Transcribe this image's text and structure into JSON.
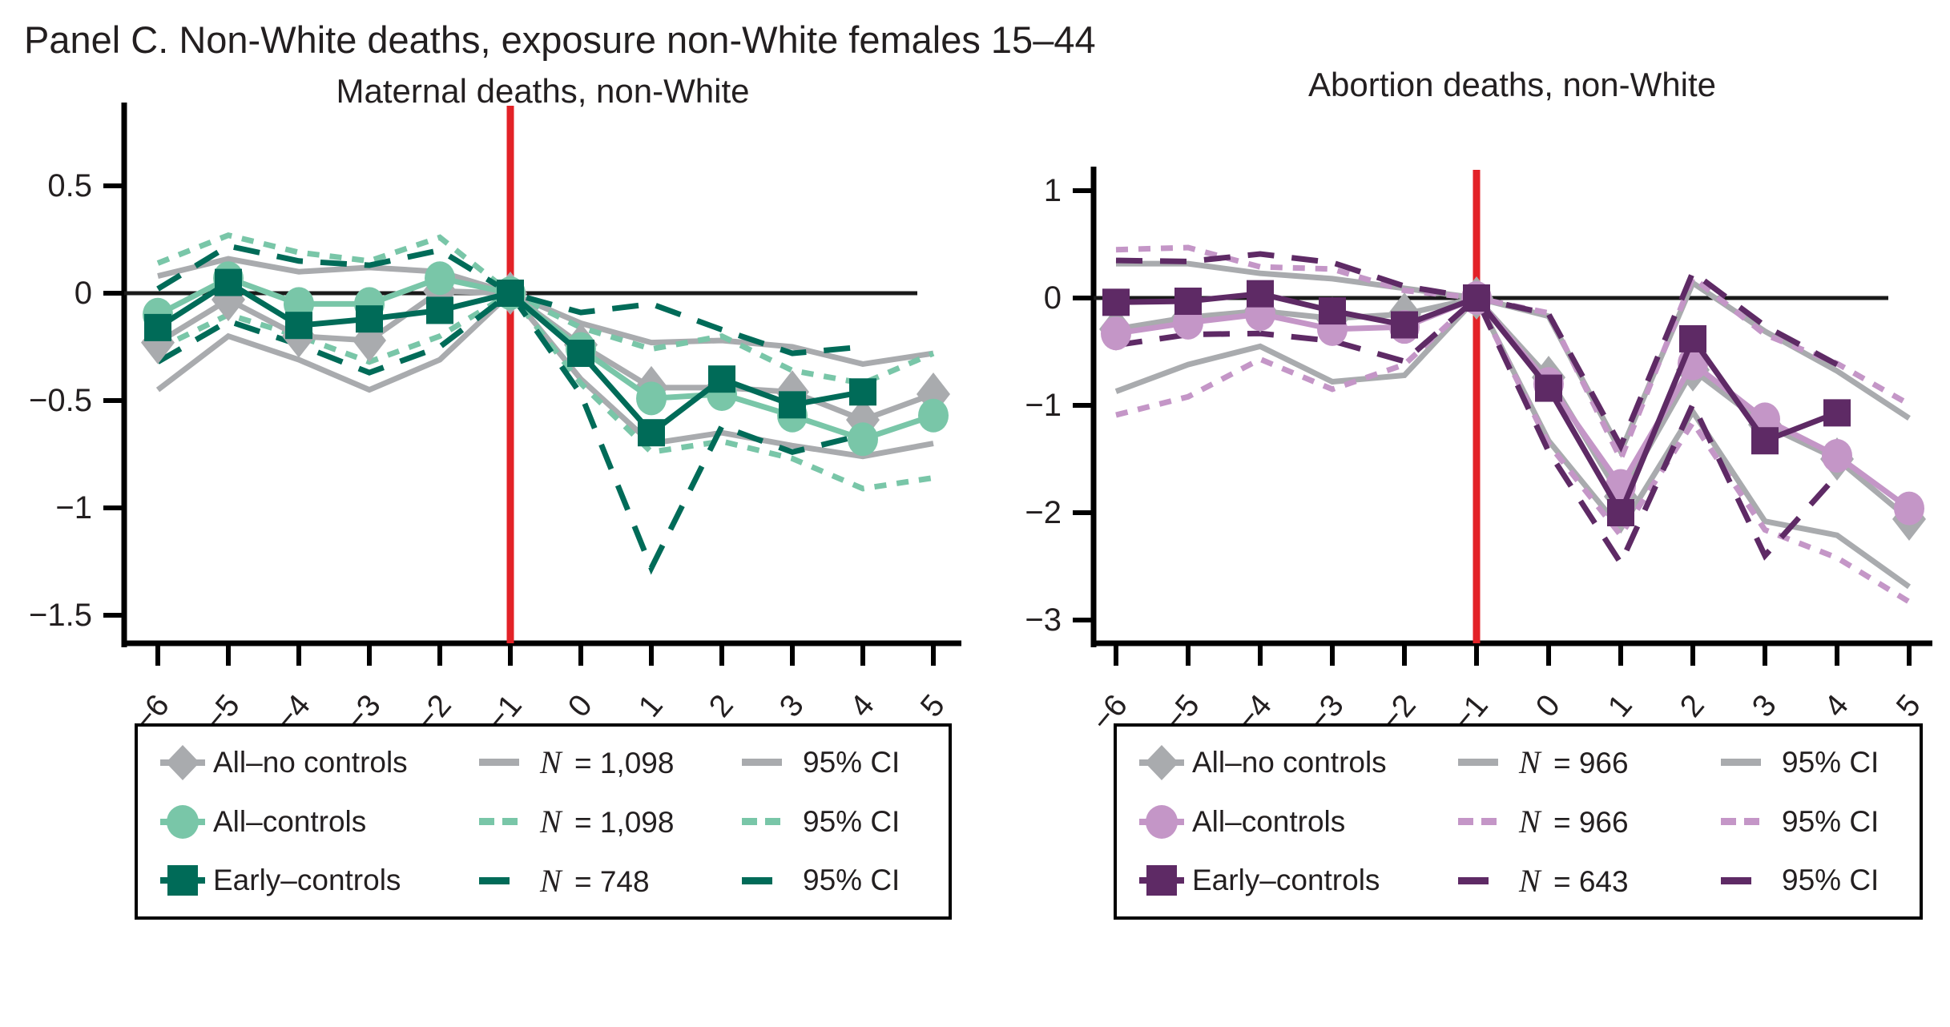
{
  "panel_title": "Panel C. Non-White deaths, exposure non-White females 15–44",
  "colors": {
    "gray": "#a9abae",
    "teal_light": "#79c6a8",
    "teal_dark": "#006b58",
    "purple_light": "#c496c7",
    "purple_dark": "#5e2a65",
    "red_line": "#e32227",
    "axis": "#000000",
    "text": "#231f20"
  },
  "chart_data": [
    {
      "type": "line",
      "title": "Maternal deaths, non-White",
      "xlabel": "",
      "ylabel": "",
      "x": [
        -6,
        -5,
        -4,
        -3,
        -2,
        -1,
        0,
        1,
        2,
        3,
        4,
        5
      ],
      "x_tick_labels": [
        "−6",
        "−5",
        "−4",
        "−3",
        "−2",
        "−1",
        "0",
        "1",
        "2",
        "3",
        "4",
        "5"
      ],
      "y_ticks": [
        {
          "v": 0.5,
          "label": "0.5"
        },
        {
          "v": 0,
          "label": "0"
        },
        {
          "v": -0.5,
          "label": "−0.5"
        },
        {
          "v": -1,
          "label": "−1"
        },
        {
          "v": -1.5,
          "label": "−1.5"
        }
      ],
      "ylim": [
        -1.63,
        0.89
      ],
      "grid": false,
      "zero_line": true,
      "vline_x": -1,
      "series": [
        {
          "name": "95% CI upper, all no controls",
          "role": "ci",
          "color_key": "gray",
          "dash": "solid",
          "values": [
            0.08,
            0.16,
            0.1,
            0.12,
            0.1,
            0,
            -0.14,
            -0.23,
            -0.22,
            -0.25,
            -0.33,
            -0.28
          ]
        },
        {
          "name": "95% CI lower, all no controls",
          "role": "ci",
          "color_key": "gray",
          "dash": "solid",
          "values": [
            -0.45,
            -0.2,
            -0.31,
            -0.45,
            -0.31,
            0,
            -0.4,
            -0.7,
            -0.65,
            -0.71,
            -0.76,
            -0.7
          ]
        },
        {
          "name": "95% CI upper, all controls",
          "role": "ci",
          "color_key": "teal_light",
          "dash": "short",
          "values": [
            0.14,
            0.27,
            0.19,
            0.15,
            0.26,
            0,
            -0.16,
            -0.26,
            -0.2,
            -0.36,
            -0.42,
            -0.28
          ]
        },
        {
          "name": "95% CI lower, all controls",
          "role": "ci",
          "color_key": "teal_light",
          "dash": "short",
          "values": [
            -0.26,
            -0.1,
            -0.2,
            -0.32,
            -0.2,
            0,
            -0.42,
            -0.74,
            -0.69,
            -0.77,
            -0.91,
            -0.86
          ]
        },
        {
          "name": "95% CI upper, early controls",
          "role": "ci",
          "color_key": "teal_dark",
          "dash": "long",
          "values": [
            0.02,
            0.22,
            0.15,
            0.13,
            0.2,
            0,
            -0.09,
            -0.05,
            -0.17,
            -0.28,
            -0.25,
            null
          ]
        },
        {
          "name": "95% CI lower, early controls",
          "role": "ci",
          "color_key": "teal_dark",
          "dash": "long",
          "values": [
            -0.32,
            -0.13,
            -0.24,
            -0.37,
            -0.25,
            0,
            -0.47,
            -1.28,
            -0.62,
            -0.74,
            -0.66,
            null
          ]
        },
        {
          "name": "All–no controls",
          "role": "main",
          "marker": "diamond",
          "color_key": "gray",
          "dash": "solid",
          "values": [
            -0.23,
            -0.03,
            -0.2,
            -0.22,
            0.01,
            0,
            -0.24,
            -0.44,
            -0.44,
            -0.46,
            -0.59,
            -0.47
          ]
        },
        {
          "name": "All–controls",
          "role": "main",
          "marker": "circle",
          "color_key": "teal_light",
          "dash": "solid",
          "values": [
            -0.1,
            0.07,
            -0.05,
            -0.05,
            0.07,
            0,
            -0.26,
            -0.49,
            -0.47,
            -0.57,
            -0.68,
            -0.57
          ]
        },
        {
          "name": "Early–controls",
          "role": "main",
          "marker": "square",
          "color_key": "teal_dark",
          "dash": "solid",
          "values": [
            -0.16,
            0.05,
            -0.15,
            -0.12,
            -0.08,
            0,
            -0.28,
            -0.65,
            -0.4,
            -0.52,
            -0.46,
            null
          ]
        }
      ],
      "legend": [
        {
          "marker": "diamond",
          "color_key": "gray",
          "dash": "solid",
          "label": "All–no controls",
          "n_var": "N",
          "n_rest": "= 1,098",
          "ci_label": "95% CI"
        },
        {
          "marker": "circle",
          "color_key": "teal_light",
          "dash": "short",
          "label": "All–controls",
          "n_var": "N",
          "n_rest": "= 1,098",
          "ci_label": "95% CI"
        },
        {
          "marker": "square",
          "color_key": "teal_dark",
          "dash": "long",
          "label": "Early–controls",
          "n_var": "N",
          "n_rest": "= 748",
          "ci_label": "95% CI"
        }
      ]
    },
    {
      "type": "line",
      "title": "Abortion deaths, non-White",
      "xlabel": "",
      "ylabel": "",
      "x": [
        -6,
        -5,
        -4,
        -3,
        -2,
        -1,
        0,
        1,
        2,
        3,
        4,
        5
      ],
      "x_tick_labels": [
        "−6",
        "−5",
        "−4",
        "−3",
        "−2",
        "−1",
        "0",
        "1",
        "2",
        "3",
        "4",
        "5"
      ],
      "y_ticks": [
        {
          "v": 1,
          "label": "1"
        },
        {
          "v": 0,
          "label": "0"
        },
        {
          "v": -1,
          "label": "−1"
        },
        {
          "v": -2,
          "label": "−2"
        },
        {
          "v": -3,
          "label": "−3"
        }
      ],
      "ylim": [
        -3.23,
        1.22
      ],
      "grid": false,
      "zero_line": true,
      "vline_x": -1,
      "series": [
        {
          "name": "95% CI upper, all no controls",
          "role": "ci",
          "color_key": "gray",
          "dash": "solid",
          "values": [
            0.32,
            0.32,
            0.23,
            0.18,
            0.09,
            0,
            -0.17,
            -1.43,
            0.14,
            -0.31,
            -0.68,
            -1.12
          ]
        },
        {
          "name": "95% CI lower, all no controls",
          "role": "ci",
          "color_key": "gray",
          "dash": "solid",
          "values": [
            -0.87,
            -0.62,
            -0.45,
            -0.78,
            -0.72,
            0,
            -1.33,
            -2.15,
            -1.06,
            -2.08,
            -2.21,
            -2.69
          ]
        },
        {
          "name": "95% CI upper, all controls",
          "role": "ci",
          "color_key": "purple_light",
          "dash": "short",
          "values": [
            0.45,
            0.47,
            0.29,
            0.27,
            0.07,
            0,
            -0.14,
            -1.5,
            0.19,
            -0.34,
            -0.61,
            -0.99
          ]
        },
        {
          "name": "95% CI lower, all controls",
          "role": "ci",
          "color_key": "purple_light",
          "dash": "short",
          "values": [
            -1.09,
            -0.92,
            -0.57,
            -0.85,
            -0.62,
            0,
            -1.36,
            -2.21,
            -1.16,
            -2.16,
            -2.42,
            -2.83
          ]
        },
        {
          "name": "95% CI upper, early controls",
          "role": "ci",
          "color_key": "purple_dark",
          "dash": "long",
          "values": [
            0.35,
            0.34,
            0.41,
            0.33,
            0.11,
            0,
            -0.15,
            -1.38,
            0.24,
            -0.26,
            -0.62,
            null
          ]
        },
        {
          "name": "95% CI lower, early controls",
          "role": "ci",
          "color_key": "purple_dark",
          "dash": "long",
          "values": [
            -0.44,
            -0.34,
            -0.33,
            -0.4,
            -0.59,
            0,
            -1.43,
            -2.47,
            -0.99,
            -2.4,
            -1.65,
            null
          ]
        },
        {
          "name": "All–no controls",
          "role": "main",
          "marker": "diamond",
          "color_key": "gray",
          "dash": "solid",
          "values": [
            -0.29,
            -0.18,
            -0.12,
            -0.19,
            -0.15,
            0,
            -0.74,
            -1.85,
            -0.67,
            -1.18,
            -1.5,
            -2.06
          ]
        },
        {
          "name": "All–controls",
          "role": "main",
          "marker": "circle",
          "color_key": "purple_light",
          "dash": "solid",
          "values": [
            -0.33,
            -0.23,
            -0.15,
            -0.29,
            -0.27,
            0,
            -0.8,
            -1.75,
            -0.61,
            -1.13,
            -1.47,
            -1.96
          ]
        },
        {
          "name": "Early–controls",
          "role": "main",
          "marker": "square",
          "color_key": "purple_dark",
          "dash": "solid",
          "values": [
            -0.04,
            -0.03,
            0.04,
            -0.12,
            -0.25,
            0,
            -0.84,
            -2.0,
            -0.38,
            -1.33,
            -1.07,
            null
          ]
        }
      ],
      "legend": [
        {
          "marker": "diamond",
          "color_key": "gray",
          "dash": "solid",
          "label": "All–no controls",
          "n_var": "N",
          "n_rest": "= 966",
          "ci_label": "95% CI"
        },
        {
          "marker": "circle",
          "color_key": "purple_light",
          "dash": "short",
          "label": "All–controls",
          "n_var": "N",
          "n_rest": "= 966",
          "ci_label": "95% CI"
        },
        {
          "marker": "square",
          "color_key": "purple_dark",
          "dash": "long",
          "label": "Early–controls",
          "n_var": "N",
          "n_rest": "= 643",
          "ci_label": "95% CI"
        }
      ]
    }
  ]
}
